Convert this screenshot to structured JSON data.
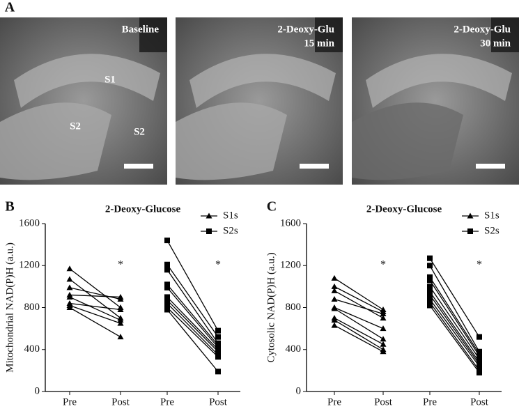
{
  "panel_labels": [
    "A",
    "B",
    "C"
  ],
  "images": [
    {
      "caption": [
        "Baseline"
      ],
      "regions": [
        "S1",
        "S2",
        "S2"
      ]
    },
    {
      "caption": [
        "2-Deoxy-Glu",
        "15 min"
      ],
      "regions": []
    },
    {
      "caption": [
        "2-Deoxy-Glu",
        "30 min"
      ],
      "regions": []
    }
  ],
  "chart_data": [
    {
      "type": "paired",
      "title": "2-Deoxy-Glucose",
      "y_label": "Mitochondrial NAD(P)H (a.u.)",
      "categories": [
        "Pre",
        "Post",
        "Pre",
        "Post"
      ],
      "ylim": [
        0,
        1600
      ],
      "yticks": [
        0,
        400,
        800,
        1200,
        1600
      ],
      "legend": "top-right",
      "series": [
        {
          "name": "S1s",
          "color": "#000000",
          "marker": "triangle",
          "significance": "*",
          "values": [
            [
              1170,
              800
            ],
            [
              1070,
              700
            ],
            [
              990,
              880
            ],
            [
              920,
              900
            ],
            [
              900,
              680
            ],
            [
              840,
              780
            ],
            [
              820,
              650
            ],
            [
              800,
              520
            ]
          ]
        },
        {
          "name": "S2s",
          "color": "#000000",
          "marker": "square",
          "significance": "*",
          "values": [
            [
              1440,
              580
            ],
            [
              1210,
              520
            ],
            [
              1160,
              460
            ],
            [
              1020,
              440
            ],
            [
              990,
              420
            ],
            [
              900,
              400
            ],
            [
              870,
              380
            ],
            [
              840,
              350
            ],
            [
              800,
              330
            ],
            [
              780,
              190
            ]
          ]
        }
      ]
    },
    {
      "type": "paired",
      "title": "2-Deoxy-Glucose",
      "y_label": "Cytosolic NAD(P)H (a.u.)",
      "categories": [
        "Pre",
        "Post",
        "Pre",
        "Post"
      ],
      "ylim": [
        0,
        1600
      ],
      "yticks": [
        0,
        400,
        800,
        1200,
        1600
      ],
      "legend": "top-right",
      "series": [
        {
          "name": "S1s",
          "color": "#000000",
          "marker": "triangle",
          "significance": "*",
          "values": [
            [
              1080,
              780
            ],
            [
              1000,
              760
            ],
            [
              960,
              700
            ],
            [
              880,
              740
            ],
            [
              800,
              600
            ],
            [
              790,
              500
            ],
            [
              700,
              450
            ],
            [
              680,
              400
            ],
            [
              630,
              380
            ]
          ]
        },
        {
          "name": "S2s",
          "color": "#000000",
          "marker": "square",
          "significance": "*",
          "values": [
            [
              1270,
              520
            ],
            [
              1200,
              380
            ],
            [
              1090,
              360
            ],
            [
              1060,
              340
            ],
            [
              1000,
              310
            ],
            [
              950,
              280
            ],
            [
              920,
              260
            ],
            [
              880,
              240
            ],
            [
              850,
              200
            ],
            [
              820,
              180
            ]
          ]
        }
      ]
    }
  ]
}
